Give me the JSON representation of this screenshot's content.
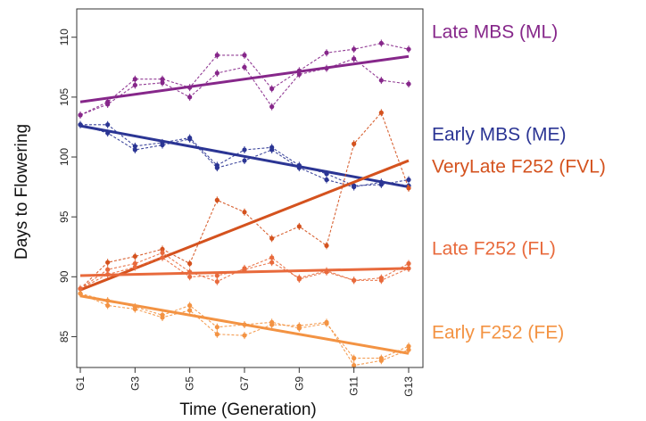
{
  "chart_data": {
    "type": "line",
    "xlabel": "Time (Generation)",
    "ylabel": "Days to Flowering",
    "x_categories": [
      "G1",
      "G2",
      "G3",
      "G4",
      "G5",
      "G6",
      "G7",
      "G8",
      "G9",
      "G10",
      "G11",
      "G12",
      "G13"
    ],
    "x_tick_labels": [
      "G1",
      "G3",
      "G5",
      "G7",
      "G9",
      "G11",
      "G13"
    ],
    "xlim": [
      1,
      13
    ],
    "ylim": [
      82.5,
      110.8
    ],
    "y_ticks": [
      85,
      90,
      95,
      100,
      105,
      110
    ],
    "grid": false,
    "legend_placement": "right",
    "series": [
      {
        "name": "Late MBS (ML)",
        "color": "#86278a",
        "trend": [
          104.6,
          108.4
        ],
        "replicates": [
          [
            103.5,
            104.6,
            106.5,
            106.5,
            105.8,
            108.5,
            108.5,
            105.7,
            107.2,
            108.7,
            109.0,
            109.5,
            109.0
          ],
          [
            103.5,
            104.4,
            106.0,
            106.2,
            105.0,
            107.0,
            107.5,
            104.2,
            106.9,
            107.4,
            108.2,
            106.4,
            106.1
          ]
        ]
      },
      {
        "name": "Early MBS (ME)",
        "color": "#2b3594",
        "trend": [
          102.6,
          97.5
        ],
        "replicates": [
          [
            102.7,
            102.7,
            100.9,
            101.2,
            101.6,
            99.3,
            100.6,
            100.8,
            99.3,
            98.6,
            97.6,
            97.7,
            98.1
          ],
          [
            102.7,
            102.0,
            100.6,
            101.0,
            101.5,
            99.1,
            99.7,
            100.6,
            99.1,
            98.1,
            97.5,
            97.9,
            97.6
          ]
        ]
      },
      {
        "name": "VeryLate F252 (FVL)",
        "color": "#d4521e",
        "trend": [
          88.9,
          99.7
        ],
        "replicates": [
          [
            89.0,
            91.2,
            91.7,
            92.3,
            91.1,
            96.4,
            95.4,
            93.2,
            94.2,
            92.6,
            101.1,
            103.7,
            97.4
          ]
        ]
      },
      {
        "name": "Late F252 (FL)",
        "color": "#e86a3c",
        "trend": [
          90.1,
          90.7
        ],
        "replicates": [
          [
            89.0,
            90.6,
            91.1,
            92.0,
            90.4,
            89.6,
            90.7,
            91.6,
            89.8,
            90.4,
            89.7,
            89.7,
            90.7
          ],
          [
            89.0,
            90.2,
            90.8,
            91.6,
            90.0,
            90.1,
            90.6,
            91.2,
            89.9,
            90.5,
            89.7,
            89.9,
            91.1
          ]
        ]
      },
      {
        "name": "Early F252 (FE)",
        "color": "#f39343",
        "trend": [
          88.4,
          83.6
        ],
        "replicates": [
          [
            88.6,
            88.0,
            87.5,
            86.8,
            87.6,
            85.8,
            86.0,
            86.2,
            85.7,
            86.1,
            83.2,
            83.2,
            84.2
          ],
          [
            88.6,
            87.6,
            87.3,
            86.6,
            87.2,
            85.2,
            85.1,
            86.0,
            85.9,
            86.2,
            82.6,
            83.0,
            83.9
          ]
        ]
      }
    ]
  }
}
